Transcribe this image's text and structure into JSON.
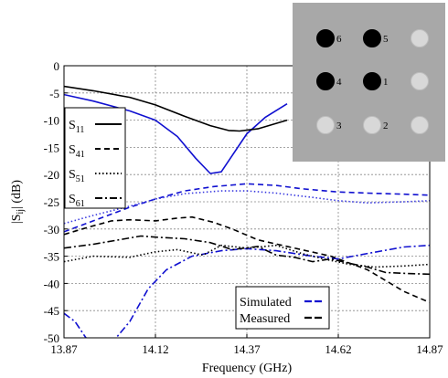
{
  "chart_data": {
    "type": "line",
    "xlabel": "Frequency (GHz)",
    "ylabel": "|S_ij| (dB)",
    "ylabel_main": "|S",
    "ylabel_sub": "ij",
    "ylabel_rest": "| (dB)",
    "xlim": [
      13.87,
      14.87
    ],
    "ylim": [
      -50,
      0
    ],
    "xticks": [
      13.87,
      14.12,
      14.37,
      14.62,
      14.87
    ],
    "xtick_labels": [
      "13.87",
      "14.12",
      "14.37",
      "14.62",
      "14.87"
    ],
    "yticks": [
      0,
      -5,
      -10,
      -15,
      -20,
      -25,
      -30,
      -35,
      -40,
      -45,
      -50
    ],
    "ytick_labels": [
      "0",
      "-5",
      "-10",
      "-15",
      "-20",
      "-25",
      "-30",
      "-35",
      "-40",
      "-45",
      "-50"
    ],
    "grid": true,
    "colors": {
      "simulated": "#1010d0",
      "measured": "#000000"
    },
    "legend_sparams": [
      {
        "main": "S",
        "sub": "11",
        "dash": "solid"
      },
      {
        "main": "S",
        "sub": "41",
        "dash": "dash"
      },
      {
        "main": "S",
        "sub": "51",
        "dash": "dot"
      },
      {
        "main": "S",
        "sub": "61",
        "dash": "dashdot"
      }
    ],
    "legend_source": [
      {
        "label": "Simulated",
        "color": "#1010d0"
      },
      {
        "label": "Measured",
        "color": "#000000"
      }
    ],
    "series": [
      {
        "name": "S11 Simulated",
        "color": "#1010d0",
        "dash": "solid",
        "x": [
          13.87,
          13.95,
          14.05,
          14.12,
          14.18,
          14.23,
          14.27,
          14.3,
          14.33,
          14.37,
          14.42,
          14.48
        ],
        "y": [
          -5.3,
          -6.5,
          -8.3,
          -10.0,
          -13.0,
          -17.0,
          -19.8,
          -19.5,
          -16.5,
          -12.5,
          -9.5,
          -7.0
        ]
      },
      {
        "name": "S11 Measured",
        "color": "#000000",
        "dash": "solid",
        "x": [
          13.87,
          13.95,
          14.05,
          14.12,
          14.2,
          14.27,
          14.32,
          14.35,
          14.4,
          14.44,
          14.48
        ],
        "y": [
          -3.8,
          -4.6,
          -5.8,
          -7.2,
          -9.3,
          -11.0,
          -11.9,
          -12.0,
          -11.6,
          -10.8,
          -10.0
        ]
      },
      {
        "name": "S41 Simulated",
        "color": "#1010d0",
        "dash": "dash",
        "x": [
          13.87,
          13.95,
          14.05,
          14.12,
          14.2,
          14.28,
          14.37,
          14.45,
          14.52,
          14.62,
          14.7,
          14.8,
          14.87
        ],
        "y": [
          -30.5,
          -28.5,
          -26.0,
          -24.5,
          -23.0,
          -22.2,
          -21.7,
          -22.0,
          -22.6,
          -23.2,
          -23.4,
          -23.6,
          -23.8
        ]
      },
      {
        "name": "S51 Simulated",
        "color": "#3a3ae0",
        "dash": "dot",
        "x": [
          13.87,
          13.95,
          14.05,
          14.12,
          14.2,
          14.3,
          14.37,
          14.45,
          14.55,
          14.62,
          14.7,
          14.8,
          14.87
        ],
        "y": [
          -29.0,
          -27.5,
          -25.8,
          -24.5,
          -23.5,
          -23.0,
          -23.0,
          -23.4,
          -24.2,
          -24.8,
          -25.2,
          -25.0,
          -24.8
        ]
      },
      {
        "name": "S61 Simulated",
        "color": "#1010d0",
        "dash": "dashdot",
        "x": [
          13.87,
          13.9,
          13.93,
          14.0,
          14.05,
          14.1,
          14.15,
          14.22,
          14.3,
          14.37,
          14.45,
          14.55,
          14.62,
          14.7,
          14.8,
          14.87
        ],
        "y": [
          -45.5,
          -47.0,
          -50.0,
          -51.0,
          -47.0,
          -41.0,
          -37.5,
          -35.0,
          -34.0,
          -33.6,
          -34.0,
          -35.0,
          -35.5,
          -34.5,
          -33.3,
          -33.0
        ]
      },
      {
        "name": "S41 Measured",
        "color": "#000000",
        "dash": "dash",
        "x": [
          13.87,
          13.93,
          14.0,
          14.05,
          14.12,
          14.18,
          14.22,
          14.28,
          14.33,
          14.4,
          14.5,
          14.6,
          14.7,
          14.8,
          14.87
        ],
        "y": [
          -31.0,
          -29.8,
          -28.5,
          -28.3,
          -28.5,
          -28.0,
          -27.8,
          -28.8,
          -30.0,
          -32.0,
          -33.5,
          -35.0,
          -37.5,
          -41.5,
          -43.5
        ]
      },
      {
        "name": "S51 Measured",
        "color": "#000000",
        "dash": "dot",
        "x": [
          13.87,
          13.95,
          14.05,
          14.12,
          14.18,
          14.25,
          14.3,
          14.37,
          14.45,
          14.52,
          14.58,
          14.65,
          14.72,
          14.8,
          14.87
        ],
        "y": [
          -36.0,
          -35.0,
          -35.2,
          -34.2,
          -33.8,
          -34.8,
          -33.0,
          -33.5,
          -33.0,
          -34.5,
          -35.5,
          -36.5,
          -37.0,
          -36.8,
          -36.5
        ]
      },
      {
        "name": "S61 Measured",
        "color": "#000000",
        "dash": "dashdot",
        "x": [
          13.87,
          13.95,
          14.02,
          14.08,
          14.12,
          14.2,
          14.27,
          14.33,
          14.4,
          14.45,
          14.5,
          14.55,
          14.6,
          14.65,
          14.7,
          14.75,
          14.82,
          14.87
        ],
        "y": [
          -33.5,
          -32.8,
          -32.0,
          -31.3,
          -31.5,
          -31.8,
          -32.5,
          -33.8,
          -33.2,
          -34.8,
          -35.2,
          -36.0,
          -35.5,
          -36.3,
          -37.0,
          -38.0,
          -38.2,
          -38.3
        ]
      }
    ],
    "inset": {
      "rows": [
        [
          {
            "label": "6",
            "filled": true
          },
          {
            "label": "5",
            "filled": true
          },
          {
            "label": "",
            "filled": false
          }
        ],
        [
          {
            "label": "4",
            "filled": true
          },
          {
            "label": "1",
            "filled": true
          },
          {
            "label": "",
            "filled": false
          }
        ],
        [
          {
            "label": "3",
            "filled": false
          },
          {
            "label": "2",
            "filled": false
          },
          {
            "label": "",
            "filled": false
          }
        ]
      ],
      "background": "#a8a8a8",
      "filled_color": "#000000",
      "empty_color": "#d8d8d8"
    }
  }
}
